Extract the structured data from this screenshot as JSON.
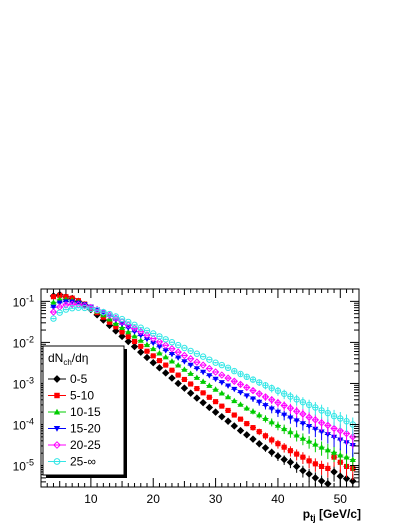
{
  "chart_data": {
    "type": "scatter",
    "xlabel_main": "p",
    "xlabel_sub": "tj",
    "xlabel_unit": " [GeV/c]",
    "ylabel": "",
    "x_scale": "linear",
    "y_scale": "log",
    "xlim": [
      2,
      53
    ],
    "ylim": [
      3e-06,
      0.2
    ],
    "x_ticks": [
      10,
      20,
      30,
      40,
      50
    ],
    "y_ticks": [
      {
        "value": 0.1,
        "base": "10",
        "exp": "-1"
      },
      {
        "value": 0.01,
        "base": "10",
        "exp": "-2"
      },
      {
        "value": 0.001,
        "base": "10",
        "exp": "-3"
      },
      {
        "value": 0.0001,
        "base": "10",
        "exp": "-4"
      },
      {
        "value": 1e-05,
        "base": "10",
        "exp": "-5"
      }
    ],
    "grid": false,
    "legend": {
      "title_main": "dN",
      "title_sub": "ch",
      "title_tail": "/dη",
      "placement": "bottom-left"
    },
    "series": [
      {
        "name": "0-5",
        "color": "#000000",
        "marker": "diamond",
        "x": [
          4,
          5,
          6,
          7,
          8,
          9,
          10,
          11,
          12,
          13,
          14,
          15,
          16,
          17,
          18,
          19,
          20,
          21,
          22,
          23,
          24,
          25,
          26,
          27,
          28,
          29,
          30,
          31,
          32,
          33,
          34,
          35,
          36,
          37,
          38,
          39,
          40,
          41,
          42,
          43,
          44,
          45,
          46,
          47,
          48,
          49,
          50,
          51,
          52
        ],
        "y": [
          0.135,
          0.145,
          0.13,
          0.118,
          0.1,
          0.082,
          0.063,
          0.047,
          0.035,
          0.026,
          0.019,
          0.014,
          0.0105,
          0.0079,
          0.0058,
          0.0043,
          0.0032,
          0.0024,
          0.0018,
          0.00135,
          0.001,
          0.00077,
          0.00058,
          0.00044,
          0.00034,
          0.00026,
          0.0002,
          0.000155,
          0.00012,
          9.2e-05,
          7.1e-05,
          5.6e-05,
          4.4e-05,
          3.4e-05,
          2.7e-05,
          2.1e-05,
          1.7e-05,
          1.4e-05,
          1.2e-05,
          9.5e-06,
          7.5e-06,
          6.2e-06,
          5e-06,
          4.2e-06,
          3.6e-06,
          7e-06,
          5.5e-06,
          4.8e-06,
          4.2e-06
        ]
      },
      {
        "name": "5-10",
        "color": "#ff0000",
        "marker": "square",
        "x": [
          4,
          5,
          6,
          7,
          8,
          9,
          10,
          11,
          12,
          13,
          14,
          15,
          16,
          17,
          18,
          19,
          20,
          21,
          22,
          23,
          24,
          25,
          26,
          27,
          28,
          29,
          30,
          31,
          32,
          33,
          34,
          35,
          36,
          37,
          38,
          39,
          40,
          41,
          42,
          43,
          44,
          45,
          46,
          47,
          48,
          49,
          50,
          51,
          52
        ],
        "y": [
          0.13,
          0.14,
          0.13,
          0.12,
          0.104,
          0.086,
          0.068,
          0.053,
          0.041,
          0.031,
          0.024,
          0.018,
          0.0138,
          0.0105,
          0.008,
          0.0061,
          0.0047,
          0.0036,
          0.0028,
          0.0021,
          0.0016,
          0.00125,
          0.00097,
          0.00075,
          0.00059,
          0.00046,
          0.00036,
          0.00028,
          0.00022,
          0.00017,
          0.000135,
          0.000105,
          8.4e-05,
          6.7e-05,
          5.3e-05,
          4.2e-05,
          3.4e-05,
          2.8e-05,
          2.3e-05,
          1.9e-05,
          1.6e-05,
          1.3e-05,
          1.1e-05,
          9.5e-06,
          8.5e-06,
          1.6e-05,
          1.2e-05,
          9.5e-06,
          8.5e-06
        ]
      },
      {
        "name": "10-15",
        "color": "#00cc00",
        "marker": "triangle-up",
        "x": [
          4,
          5,
          6,
          7,
          8,
          9,
          10,
          11,
          12,
          13,
          14,
          15,
          16,
          17,
          18,
          19,
          20,
          21,
          22,
          23,
          24,
          25,
          26,
          27,
          28,
          29,
          30,
          31,
          32,
          33,
          34,
          35,
          36,
          37,
          38,
          39,
          40,
          41,
          42,
          43,
          44,
          45,
          46,
          47,
          48,
          49,
          50,
          51,
          52
        ],
        "y": [
          0.095,
          0.113,
          0.112,
          0.107,
          0.097,
          0.085,
          0.071,
          0.058,
          0.047,
          0.037,
          0.029,
          0.023,
          0.0181,
          0.0142,
          0.0112,
          0.0088,
          0.007,
          0.0055,
          0.0044,
          0.0035,
          0.0028,
          0.0022,
          0.00175,
          0.0014,
          0.00112,
          0.00089,
          0.00072,
          0.00058,
          0.00047,
          0.00038,
          0.00031,
          0.00025,
          0.00021,
          0.00017,
          0.00014,
          0.000115,
          9.5e-05,
          7.9e-05,
          6.6e-05,
          5.5e-05,
          4.6e-05,
          3.9e-05,
          3.3e-05,
          2.8e-05,
          2.4e-05,
          2.1e-05,
          1.8e-05,
          1.6e-05,
          1.4e-05
        ]
      },
      {
        "name": "15-20",
        "color": "#0000ff",
        "marker": "triangle-down",
        "x": [
          4,
          5,
          6,
          7,
          8,
          9,
          10,
          11,
          12,
          13,
          14,
          15,
          16,
          17,
          18,
          19,
          20,
          21,
          22,
          23,
          24,
          25,
          26,
          27,
          28,
          29,
          30,
          31,
          32,
          33,
          34,
          35,
          36,
          37,
          38,
          39,
          40,
          41,
          42,
          43,
          44,
          45,
          46,
          47,
          48,
          49,
          50,
          51,
          52
        ],
        "y": [
          0.072,
          0.092,
          0.098,
          0.097,
          0.091,
          0.083,
          0.073,
          0.062,
          0.052,
          0.043,
          0.035,
          0.028,
          0.0226,
          0.0182,
          0.0147,
          0.0119,
          0.0096,
          0.0078,
          0.0063,
          0.0051,
          0.0042,
          0.0034,
          0.0028,
          0.0023,
          0.00188,
          0.00155,
          0.00127,
          0.00105,
          0.00087,
          0.00072,
          0.0006,
          0.0005,
          0.00042,
          0.00035,
          0.00029,
          0.00024,
          0.0002,
          0.00017,
          0.000145,
          0.000123,
          0.000105,
          9e-05,
          7.7e-05,
          6.6e-05,
          5.7e-05,
          4.9e-05,
          4.2e-05,
          3.6e-05,
          3.1e-05
        ]
      },
      {
        "name": "20-25",
        "color": "#ff00ff",
        "marker": "diamond-open",
        "x": [
          4,
          5,
          6,
          7,
          8,
          9,
          10,
          11,
          12,
          13,
          14,
          15,
          16,
          17,
          18,
          19,
          20,
          21,
          22,
          23,
          24,
          25,
          26,
          27,
          28,
          29,
          30,
          31,
          32,
          33,
          34,
          35,
          36,
          37,
          38,
          39,
          40,
          41,
          42,
          43,
          44,
          45,
          46,
          47,
          48,
          49,
          50,
          51,
          52
        ],
        "y": [
          0.055,
          0.073,
          0.082,
          0.085,
          0.083,
          0.078,
          0.071,
          0.063,
          0.054,
          0.046,
          0.039,
          0.032,
          0.0266,
          0.022,
          0.0182,
          0.015,
          0.0124,
          0.0103,
          0.0085,
          0.007,
          0.0058,
          0.0048,
          0.004,
          0.0033,
          0.0028,
          0.0023,
          0.0019,
          0.0016,
          0.00135,
          0.00113,
          0.00095,
          0.0008,
          0.00067,
          0.00056,
          0.00047,
          0.0004,
          0.00034,
          0.00029,
          0.00025,
          0.00021,
          0.00018,
          0.00015,
          0.00013,
          0.00011,
          9.5e-05,
          8e-05,
          7e-05,
          6e-05,
          5e-05
        ]
      },
      {
        "name": "25-∞",
        "color": "#33e6e6",
        "marker": "circle-open",
        "x": [
          4,
          5,
          6,
          7,
          8,
          9,
          10,
          11,
          12,
          13,
          14,
          15,
          16,
          17,
          18,
          19,
          20,
          21,
          22,
          23,
          24,
          25,
          26,
          27,
          28,
          29,
          30,
          31,
          32,
          33,
          34,
          35,
          36,
          37,
          38,
          39,
          40,
          41,
          42,
          43,
          44,
          45,
          46,
          47,
          48,
          49,
          50,
          51,
          52
        ],
        "y": [
          0.038,
          0.053,
          0.063,
          0.068,
          0.07,
          0.069,
          0.066,
          0.061,
          0.055,
          0.049,
          0.043,
          0.037,
          0.0315,
          0.0268,
          0.0228,
          0.0194,
          0.0165,
          0.014,
          0.0119,
          0.0101,
          0.0086,
          0.0073,
          0.0062,
          0.0053,
          0.0045,
          0.0038,
          0.0032,
          0.0028,
          0.0024,
          0.002,
          0.0017,
          0.00145,
          0.00124,
          0.00106,
          0.0009,
          0.00077,
          0.00066,
          0.00056,
          0.00048,
          0.00041,
          0.00035,
          0.0003,
          0.00026,
          0.00022,
          0.00019,
          0.00016,
          0.00014,
          0.00012,
          0.0001
        ]
      }
    ]
  }
}
